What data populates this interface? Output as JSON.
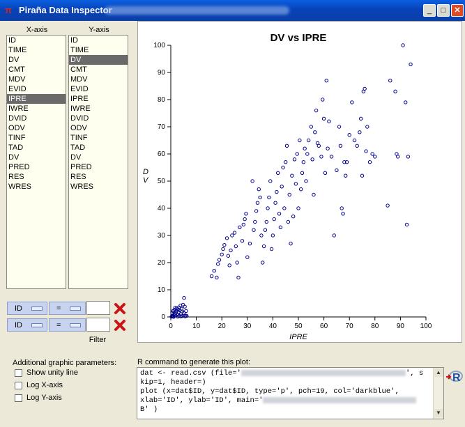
{
  "window": {
    "title": "Piraña Data Inspector"
  },
  "xaxis": {
    "header": "X-axis",
    "items": [
      "ID",
      "TIME",
      "DV",
      "CMT",
      "MDV",
      "EVID",
      "IPRE",
      "IWRE",
      "DVID",
      "ODV",
      "TINF",
      "TAD",
      "DV",
      "PRED",
      "RES",
      "WRES"
    ],
    "selected": 6
  },
  "yaxis": {
    "header": "Y-axis",
    "items": [
      "ID",
      "TIME",
      "DV",
      "CMT",
      "MDV",
      "EVID",
      "IPRE",
      "IWRE",
      "DVID",
      "ODV",
      "TINF",
      "TAD",
      "DV",
      "PRED",
      "RES",
      "WRES"
    ],
    "selected": 2
  },
  "filters": [
    {
      "column": "ID",
      "operator": "=",
      "value": ""
    },
    {
      "column": "ID",
      "operator": "=",
      "value": ""
    }
  ],
  "filter_button": "Filter",
  "additional": {
    "title": "Additional graphic parameters:",
    "options": [
      {
        "label": "Show unity line",
        "checked": false
      },
      {
        "label": "Log X-axis",
        "checked": false
      },
      {
        "label": "Log Y-axis",
        "checked": false
      }
    ]
  },
  "rcommand": {
    "label": "R command to generate this plot:",
    "line1": "dat <- read.csv (file='",
    "line1b": "', s",
    "line2": "kip=1, header=)",
    "line3": "plot (x=dat$ID, y=dat$ID, type='p', pch=19, col='darkblue',",
    "line4": "xlab='ID', ylab='ID', main='",
    "line5": "B' )"
  },
  "chart_data": {
    "type": "scatter",
    "title": "DV vs IPRE",
    "xlabel": "IPRE",
    "ylabel": "DV",
    "xlim": [
      0,
      100
    ],
    "ylim": [
      0,
      100
    ],
    "xticks": [
      0,
      10,
      20,
      30,
      40,
      50,
      60,
      70,
      80,
      90,
      100
    ],
    "yticks": [
      0,
      10,
      20,
      30,
      40,
      50,
      60,
      70,
      80,
      90,
      100
    ],
    "color": "#00008b",
    "points": [
      [
        0.3,
        0.1
      ],
      [
        0.5,
        0.3
      ],
      [
        0.8,
        0.5
      ],
      [
        1.0,
        0.2
      ],
      [
        1.2,
        0.8
      ],
      [
        1.5,
        1.2
      ],
      [
        1.8,
        0.6
      ],
      [
        2.0,
        1.5
      ],
      [
        2.2,
        2.1
      ],
      [
        2.5,
        0.9
      ],
      [
        2.8,
        2.8
      ],
      [
        3.0,
        1.8
      ],
      [
        3.2,
        3.5
      ],
      [
        3.5,
        2.5
      ],
      [
        3.8,
        4.2
      ],
      [
        4.0,
        1.0
      ],
      [
        4.2,
        3.0
      ],
      [
        4.5,
        2.0
      ],
      [
        4.8,
        4.5
      ],
      [
        5.0,
        1.5
      ],
      [
        5.2,
        7.0
      ],
      [
        5.5,
        3.8
      ],
      [
        5.8,
        0.5
      ],
      [
        6.0,
        2.2
      ],
      [
        0.6,
        1.4
      ],
      [
        1.4,
        2.6
      ],
      [
        2.3,
        3.2
      ],
      [
        3.3,
        0.4
      ],
      [
        4.4,
        0.3
      ],
      [
        5.6,
        0.2
      ],
      [
        6.2,
        0.4
      ],
      [
        1.1,
        0.05
      ],
      [
        2.7,
        0.1
      ],
      [
        3.9,
        0.2
      ],
      [
        0.9,
        2.2
      ],
      [
        1.7,
        3.4
      ],
      [
        16,
        15
      ],
      [
        17,
        17
      ],
      [
        18,
        14.5
      ],
      [
        18.5,
        19.5
      ],
      [
        19,
        21
      ],
      [
        20,
        23
      ],
      [
        20.5,
        25
      ],
      [
        21,
        26.5
      ],
      [
        22,
        29
      ],
      [
        22.5,
        22.5
      ],
      [
        23,
        19
      ],
      [
        23.5,
        24.5
      ],
      [
        24,
        30
      ],
      [
        25,
        31
      ],
      [
        25.5,
        26
      ],
      [
        26,
        20
      ],
      [
        26.5,
        14.5
      ],
      [
        27,
        33
      ],
      [
        28,
        28
      ],
      [
        28.5,
        34
      ],
      [
        29,
        36
      ],
      [
        29.5,
        38
      ],
      [
        30,
        22
      ],
      [
        31,
        27
      ],
      [
        32,
        50
      ],
      [
        32.5,
        32
      ],
      [
        33,
        35
      ],
      [
        33.5,
        39
      ],
      [
        34,
        42
      ],
      [
        34.5,
        47
      ],
      [
        35,
        44
      ],
      [
        35.5,
        30
      ],
      [
        36,
        20
      ],
      [
        36.5,
        26
      ],
      [
        37,
        32
      ],
      [
        37.5,
        35
      ],
      [
        38,
        40
      ],
      [
        38.5,
        44
      ],
      [
        39,
        50
      ],
      [
        39.5,
        25
      ],
      [
        40,
        30
      ],
      [
        40.5,
        36
      ],
      [
        41,
        42
      ],
      [
        41.5,
        46
      ],
      [
        42,
        53
      ],
      [
        42.5,
        38
      ],
      [
        43,
        33
      ],
      [
        43.5,
        48
      ],
      [
        44,
        55
      ],
      [
        44.5,
        40
      ],
      [
        45,
        57
      ],
      [
        45.5,
        63
      ],
      [
        46,
        35
      ],
      [
        46.5,
        45
      ],
      [
        47,
        27
      ],
      [
        47.5,
        52
      ],
      [
        48,
        37
      ],
      [
        48.5,
        58
      ],
      [
        49,
        49
      ],
      [
        49.5,
        60
      ],
      [
        50,
        40
      ],
      [
        50.5,
        65
      ],
      [
        51,
        47
      ],
      [
        51.5,
        53
      ],
      [
        52,
        57
      ],
      [
        52.5,
        62
      ],
      [
        53,
        50
      ],
      [
        53.5,
        60
      ],
      [
        54,
        65
      ],
      [
        55,
        70
      ],
      [
        55.5,
        58
      ],
      [
        56,
        45
      ],
      [
        56.5,
        68
      ],
      [
        57,
        76
      ],
      [
        57.5,
        64
      ],
      [
        58,
        63
      ],
      [
        59,
        59
      ],
      [
        59.5,
        80
      ],
      [
        60,
        73
      ],
      [
        60.5,
        53
      ],
      [
        61,
        87
      ],
      [
        61.5,
        62
      ],
      [
        62,
        72
      ],
      [
        63,
        59
      ],
      [
        64,
        30
      ],
      [
        65,
        54
      ],
      [
        66,
        70
      ],
      [
        66.5,
        63
      ],
      [
        67,
        40
      ],
      [
        67.5,
        38
      ],
      [
        68,
        57
      ],
      [
        68.5,
        52
      ],
      [
        69,
        57
      ],
      [
        70,
        67
      ],
      [
        71,
        79
      ],
      [
        72,
        65
      ],
      [
        73,
        63
      ],
      [
        74,
        68
      ],
      [
        74.5,
        73
      ],
      [
        75,
        52
      ],
      [
        75.5,
        83
      ],
      [
        76,
        84
      ],
      [
        76.5,
        61
      ],
      [
        77,
        70
      ],
      [
        78,
        57
      ],
      [
        79,
        60
      ],
      [
        80,
        59
      ],
      [
        85,
        41
      ],
      [
        86,
        87
      ],
      [
        88,
        83
      ],
      [
        88.5,
        60
      ],
      [
        89,
        59
      ],
      [
        91,
        100
      ],
      [
        92,
        79
      ],
      [
        92.5,
        34
      ],
      [
        93,
        59
      ],
      [
        94,
        93
      ]
    ]
  }
}
